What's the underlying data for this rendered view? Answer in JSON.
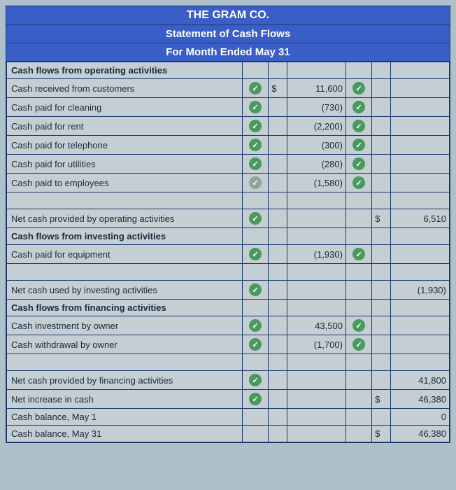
{
  "header": {
    "company": "THE GRAM CO.",
    "statement": "Statement of Cash Flows",
    "period": "For Month Ended May 31"
  },
  "rows": [
    {
      "label": "Cash flows from operating activities",
      "bold": true
    },
    {
      "label": "Cash received from customers",
      "chk1": true,
      "sym1": "$",
      "val1": "11,600",
      "chk2": true
    },
    {
      "label": "Cash paid for cleaning",
      "chk1": true,
      "val1": "(730)",
      "chk2": true
    },
    {
      "label": "Cash paid for rent",
      "chk1": true,
      "val1": "(2,200)",
      "chk2": true
    },
    {
      "label": "Cash paid for telephone",
      "chk1": true,
      "val1": "(300)",
      "chk2": true
    },
    {
      "label": "Cash paid for utilities",
      "chk1": true,
      "val1": "(280)",
      "chk2": true
    },
    {
      "label": "Cash paid to employees",
      "chk1": true,
      "chk1dim": true,
      "val1": "(1,580)",
      "chk2": true
    },
    {
      "label": ""
    },
    {
      "label": "Net cash provided by operating activities",
      "chk1": true,
      "sym2": "$",
      "val2": "6,510"
    },
    {
      "label": "Cash flows from investing activities",
      "bold": true
    },
    {
      "label": "Cash paid for equipment",
      "chk1": true,
      "val1": "(1,930)",
      "chk2": true
    },
    {
      "label": ""
    },
    {
      "label": "Net cash used by investing activities",
      "chk1": true,
      "val2": "(1,930)"
    },
    {
      "label": "Cash flows from financing activities",
      "bold": true
    },
    {
      "label": "Cash investment by owner",
      "chk1": true,
      "val1": "43,500",
      "chk2": true
    },
    {
      "label": "Cash withdrawal by owner",
      "chk1": true,
      "val1": "(1,700)",
      "chk2": true
    },
    {
      "label": ""
    },
    {
      "label": "Net cash provided by financing activities",
      "chk1": true,
      "val2": "41,800"
    },
    {
      "label": "Net increase in cash",
      "chk1": true,
      "sym2": "$",
      "val2": "46,380"
    },
    {
      "label": "Cash balance, May 1",
      "val2": "0"
    },
    {
      "label": "Cash balance, May 31",
      "sym2": "$",
      "val2": "46,380"
    }
  ],
  "colors": {
    "headerBg": "#3a5ec7",
    "headerText": "#ffffff",
    "border": "#1a3a6e",
    "rowBg": "#c5ced3",
    "pageBg": "#b0c0c8",
    "checkBg": "#4a9a5e",
    "checkDim": "#8aa896",
    "text": "#1a2a3a"
  }
}
